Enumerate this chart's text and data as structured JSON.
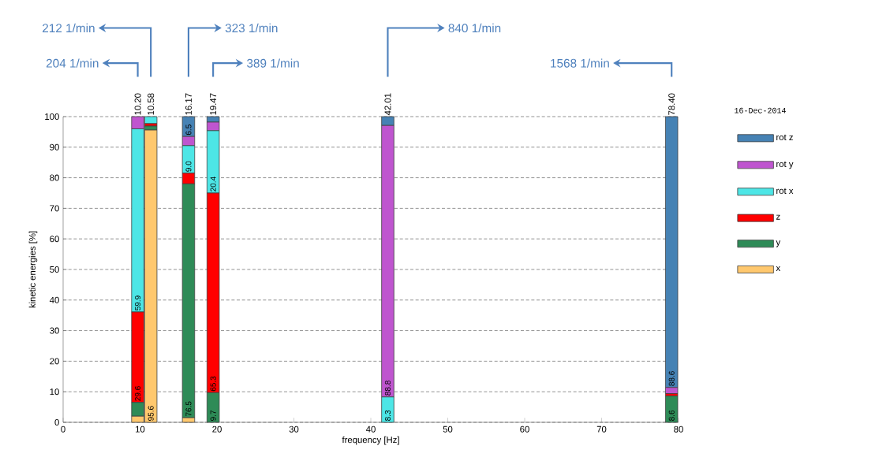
{
  "chart_data": {
    "type": "bar",
    "stacked": true,
    "xlabel": "frequency [Hz]",
    "ylabel": "kinetic energies [%]",
    "legend_title": "16-Dec-2014",
    "x": [
      9.7,
      11.4,
      16.3,
      19.5,
      42.2,
      79.1
    ],
    "series": [
      {
        "name": "x",
        "color": "#ffc86e",
        "values": [
          2.0,
          95.6,
          1.5,
          0,
          0,
          0
        ],
        "value_labels": [
          null,
          "95.6",
          null,
          null,
          null,
          null
        ]
      },
      {
        "name": "y",
        "color": "#2e8b57",
        "values": [
          4.5,
          1.3,
          76.5,
          9.7,
          0,
          8.6
        ],
        "value_labels": [
          null,
          null,
          "76.5",
          "9.7",
          null,
          "8.6"
        ]
      },
      {
        "name": "z",
        "color": "#ff0000",
        "values": [
          29.6,
          0.8,
          3.5,
          65.3,
          0,
          0.8
        ],
        "value_labels": [
          "29.6",
          null,
          null,
          "65.3",
          null,
          null
        ]
      },
      {
        "name": "rot x",
        "color": "#4de6e6",
        "values": [
          59.9,
          2.3,
          9.0,
          20.4,
          8.3,
          0
        ],
        "value_labels": [
          "59.9",
          null,
          "9.0",
          "20.4",
          "8.3",
          null
        ]
      },
      {
        "name": "rot y",
        "color": "#bf55cf",
        "values": [
          4.0,
          0,
          3.0,
          2.8,
          88.8,
          2.0
        ],
        "value_labels": [
          null,
          null,
          null,
          null,
          "88.8",
          null
        ]
      },
      {
        "name": "rot z",
        "color": "#4682b4",
        "values": [
          0,
          0,
          6.5,
          1.8,
          2.9,
          88.6
        ],
        "value_labels": [
          null,
          null,
          "6.5",
          null,
          null,
          "88.6"
        ]
      }
    ],
    "xlim": [
      0,
      80
    ],
    "xticks": [
      0,
      10,
      20,
      30,
      40,
      50,
      60,
      70,
      80
    ],
    "ylim": [
      0,
      100
    ],
    "yticks": [
      0,
      10,
      20,
      30,
      40,
      50,
      60,
      70,
      80,
      90,
      100
    ],
    "grid": "y",
    "legend": "right",
    "annotations": [
      {
        "text": "10.20",
        "x": 9.7,
        "y": 100
      },
      {
        "text": "10.58",
        "x": 11.4,
        "y": 100
      },
      {
        "text": "16.17",
        "x": 16.3,
        "y": 100
      },
      {
        "text": "19.47",
        "x": 19.5,
        "y": 100
      },
      {
        "text": "42.01",
        "x": 42.2,
        "y": 100
      },
      {
        "text": "78.40",
        "x": 79.1,
        "y": 100
      },
      "204 1/min",
      "212 1/min",
      "323 1/min",
      "389 1/min",
      "840 1/min",
      "1568 1/min"
    ]
  }
}
